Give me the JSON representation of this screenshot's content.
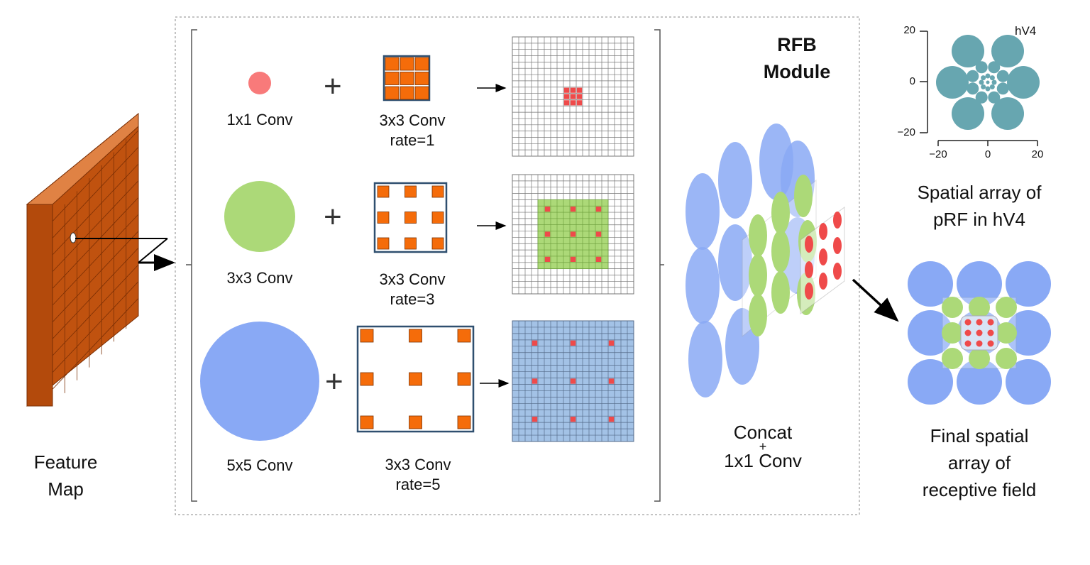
{
  "colors": {
    "pink": "#f87a7a",
    "green": "#acd978",
    "blue": "#89a9f5",
    "teal": "#67a6b0",
    "orange": "#f56c0a",
    "brick": "#c0520f",
    "grid_blue": "#a3c2e6",
    "red": "#ef4a4a"
  },
  "feature_map": {
    "label_line1": "Feature",
    "label_line2": "Map"
  },
  "rfb": {
    "title_line1": "RFB",
    "title_line2": "Module",
    "branches": [
      {
        "conv_label": "1x1 Conv",
        "dilated_label_line1": "3x3 Conv",
        "dilated_label_line2": "rate=1",
        "plus": "+"
      },
      {
        "conv_label": "3x3 Conv",
        "dilated_label_line1": "3x3 Conv",
        "dilated_label_line2": "rate=3",
        "plus": "+"
      },
      {
        "conv_label": "5x5 Conv",
        "dilated_label_line1": "3x3 Conv",
        "dilated_label_line2": "rate=5",
        "plus": "+"
      }
    ],
    "concat_line1": "Concat",
    "concat_plus": "+",
    "concat_line2": "1x1 Conv"
  },
  "hv4_plot": {
    "series_label": "hV4",
    "y_ticks": [
      "20",
      "0",
      "−20"
    ],
    "x_ticks": [
      "−20",
      "0",
      "20"
    ],
    "caption_line1": "Spatial array of",
    "caption_line2": "pRF in hV4"
  },
  "final": {
    "caption_line1": "Final spatial",
    "caption_line2": "array of",
    "caption_line3": "receptive field"
  }
}
